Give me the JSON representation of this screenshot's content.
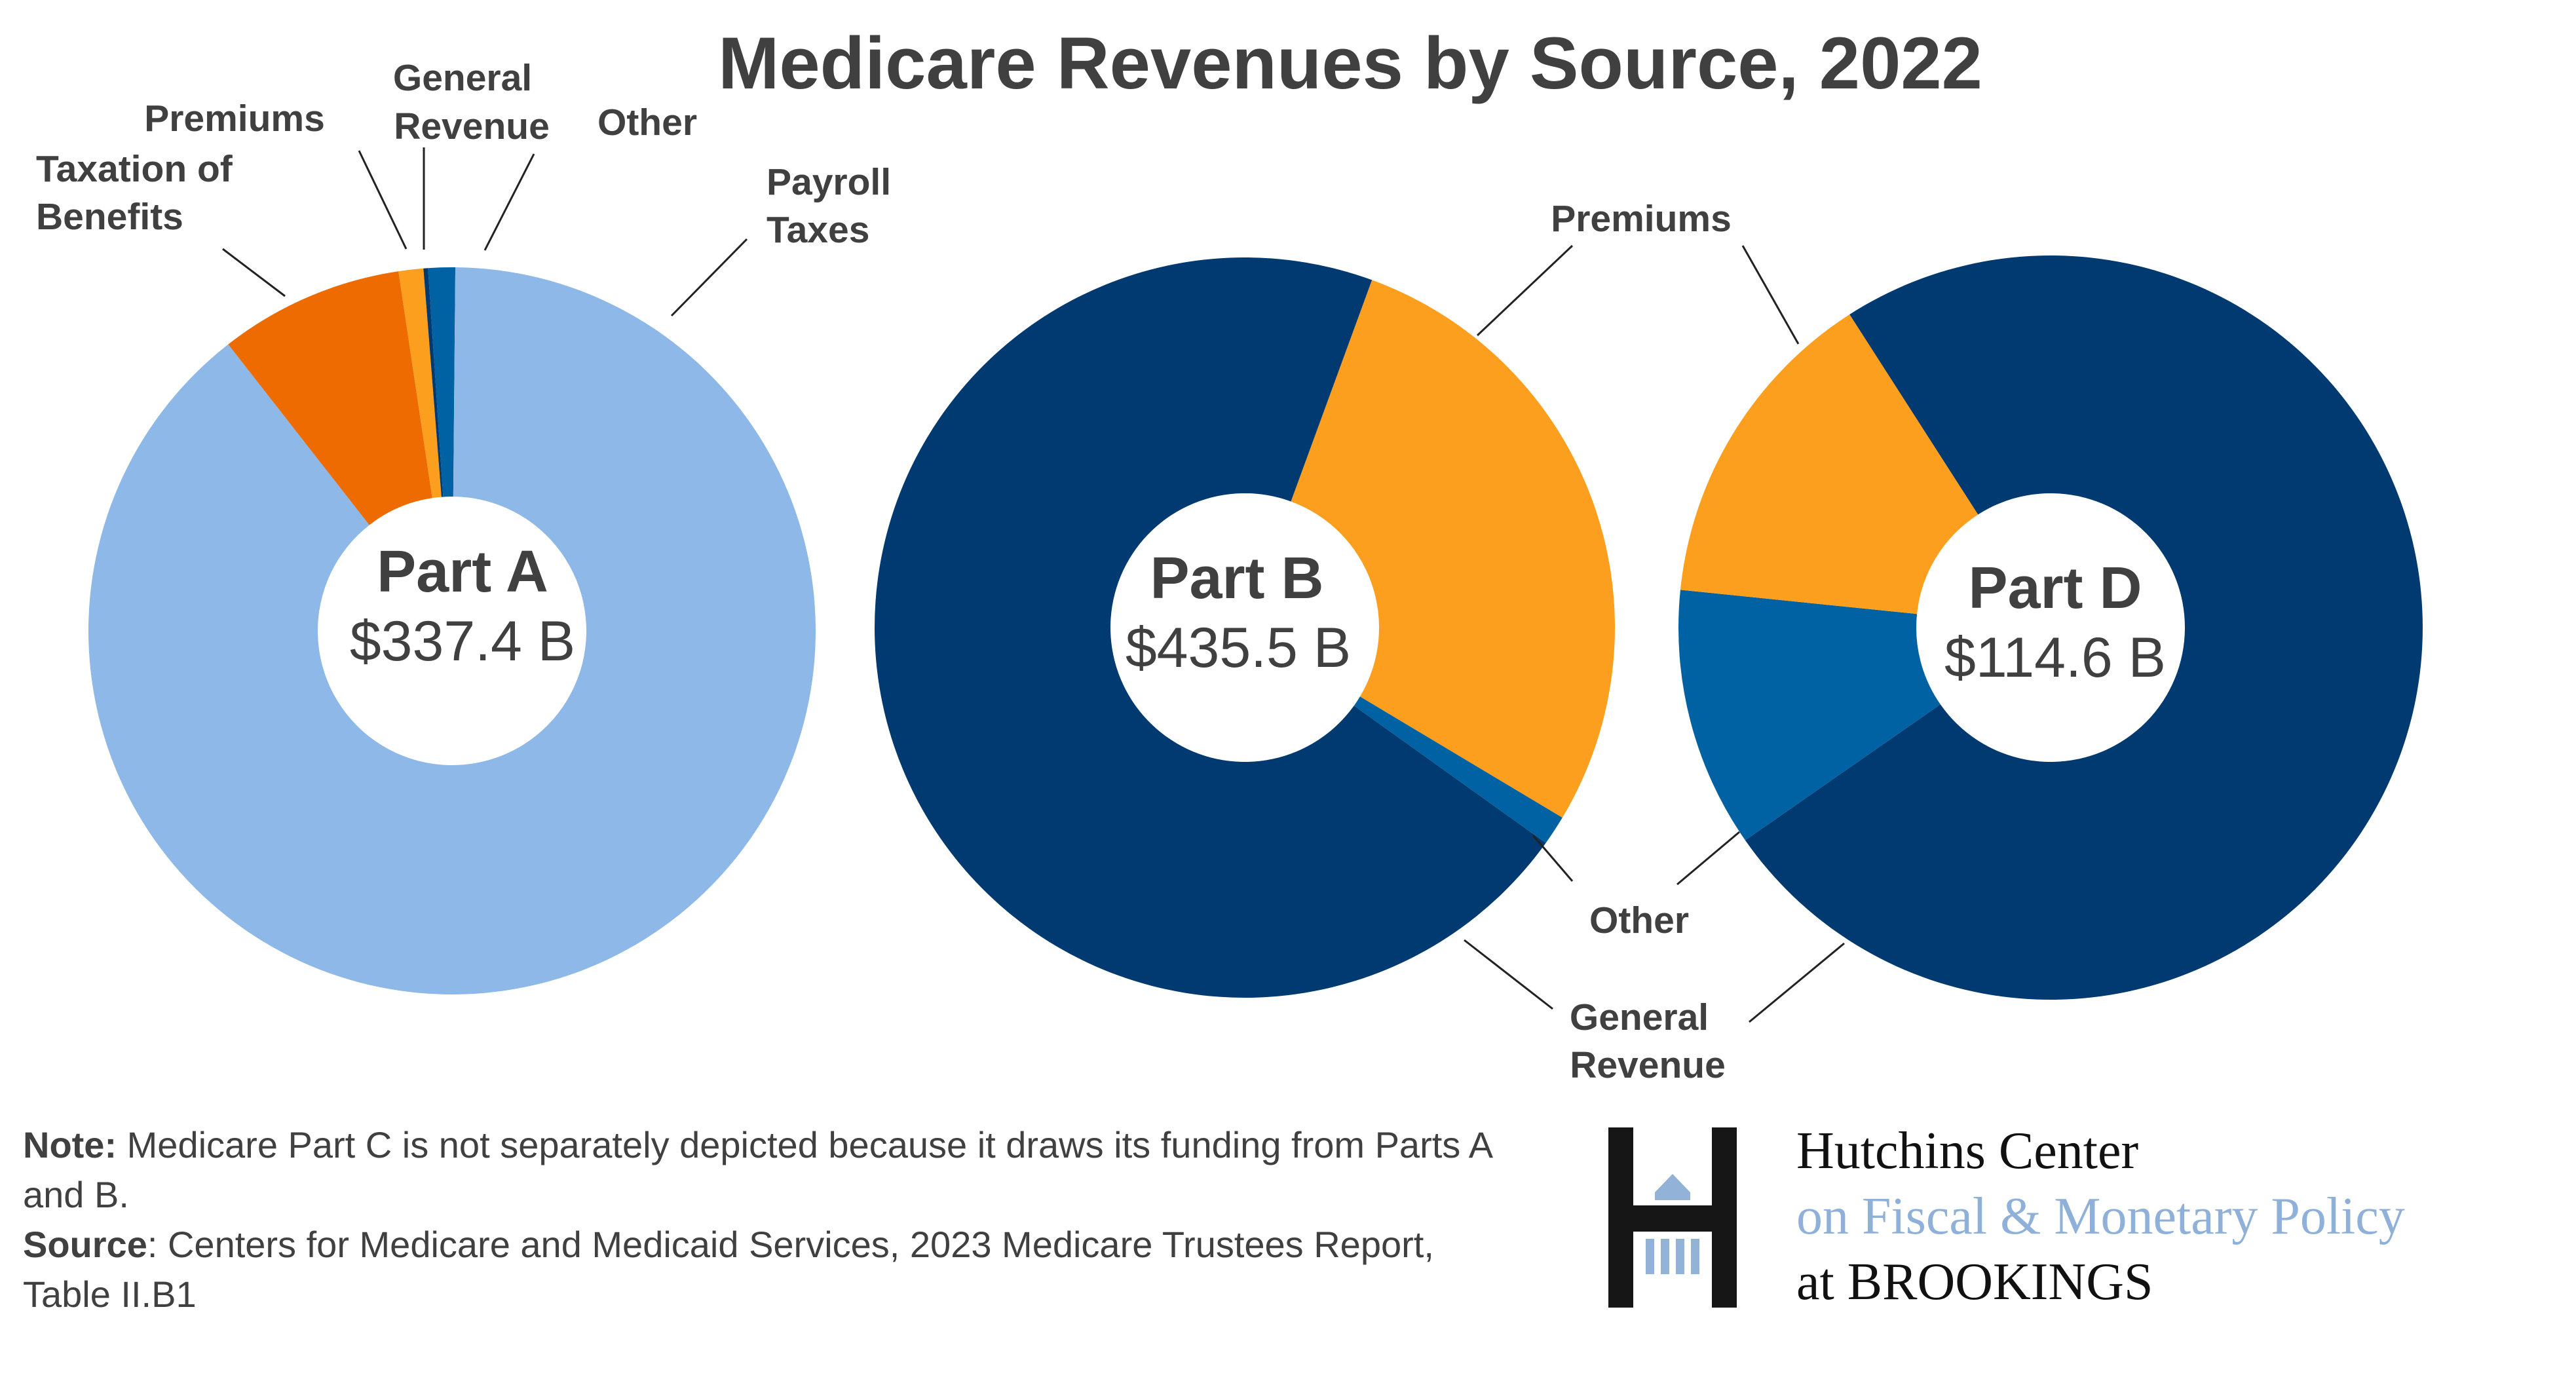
{
  "chart_data": {
    "type": "pie",
    "variant": "donut",
    "title": "Medicare Revenues by Source, 2022",
    "charts": [
      {
        "name": "Part A",
        "total": "$337.4 B",
        "slices": [
          {
            "label": "Other",
            "share_pct": 1.2,
            "color": "#0062a2"
          },
          {
            "label": "Payroll Taxes",
            "share_pct": 89.3,
            "color": "#8db8e8"
          },
          {
            "label": "Taxation of Benefits",
            "share_pct": 8.2,
            "color": "#ed6b00"
          },
          {
            "label": "Premiums",
            "share_pct": 1.1,
            "color": "#fd9f1e"
          },
          {
            "label": "General Revenue",
            "share_pct": 0.2,
            "color": "#003a70"
          }
        ]
      },
      {
        "name": "Part B",
        "total": "$435.5 B",
        "slices": [
          {
            "label": "Premiums",
            "share_pct": 28.0,
            "color": "#fd9f1e"
          },
          {
            "label": "Other",
            "share_pct": 1.3,
            "color": "#0062a2"
          },
          {
            "label": "General Revenue",
            "share_pct": 70.7,
            "color": "#003a70"
          }
        ]
      },
      {
        "name": "Part D",
        "total": "$114.6 B",
        "slices": [
          {
            "label": "General Revenue",
            "share_pct": 74.4,
            "color": "#003a70"
          },
          {
            "label": "Other",
            "share_pct": 11.3,
            "color": "#0062a2"
          },
          {
            "label": "Premiums",
            "share_pct": 14.3,
            "color": "#fd9f1e"
          }
        ]
      }
    ],
    "labels": {
      "a_general_revenue": [
        "General",
        "Revenue"
      ],
      "a_premiums": "Premiums",
      "a_taxation": [
        "Taxation of",
        "Benefits"
      ],
      "a_other": "Other",
      "a_payroll": [
        "Payroll",
        "Taxes"
      ],
      "bd_premiums": "Premiums",
      "bd_other": "Other",
      "bd_general_revenue": [
        "General",
        "Revenue"
      ]
    }
  },
  "notes": {
    "note_label": "Note:",
    "note_text": " Medicare Part C is not separately depicted because it draws its funding from Parts A and B.",
    "source_label": "Source",
    "source_text": ": Centers for Medicare and Medicaid Services, 2023 Medicare Trustees Report, Table II.B1"
  },
  "logo": {
    "line1": "Hutchins Center",
    "line2": "on Fiscal & Monetary Policy",
    "line3": "at BROOKINGS",
    "accent": "#8fb0d8"
  }
}
